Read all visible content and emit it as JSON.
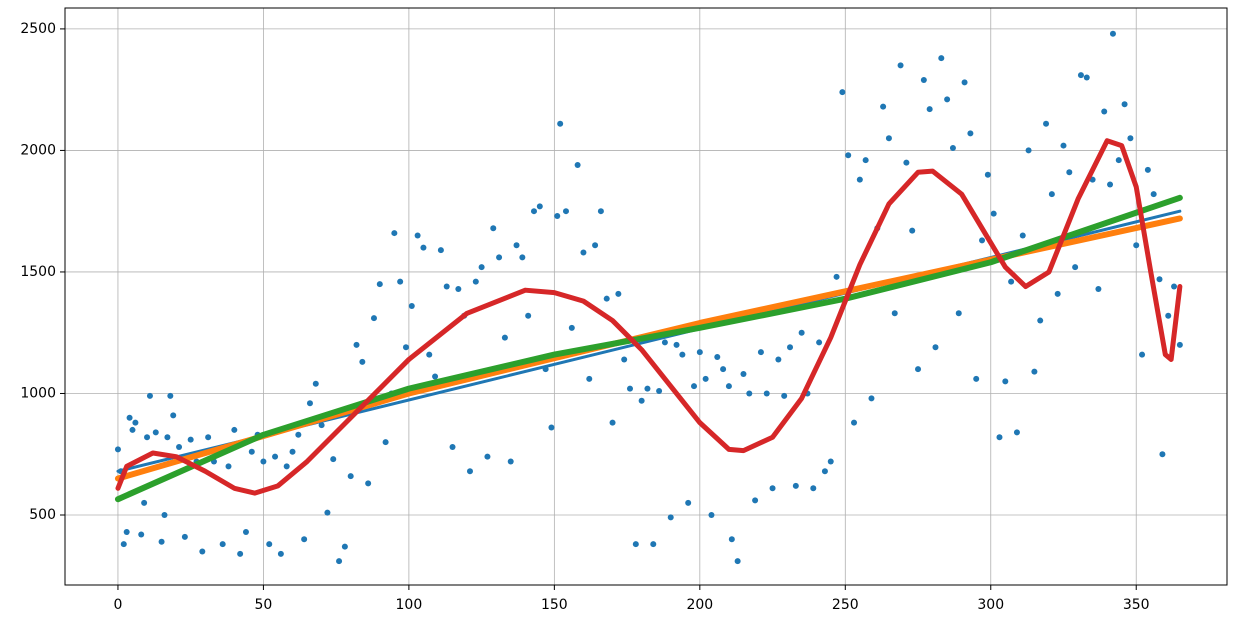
{
  "chart_data": {
    "type": "scatter",
    "color": "#1f77b4",
    "grid": true,
    "xlim": [
      -18.2,
      381.2
    ],
    "ylim": [
      212,
      2586
    ],
    "xticks": [
      0,
      50,
      100,
      150,
      200,
      250,
      300,
      350
    ],
    "yticks": [
      500,
      1000,
      1500,
      2000,
      2500
    ],
    "x": [
      0,
      1,
      2,
      3,
      4,
      5,
      6,
      8,
      9,
      10,
      11,
      13,
      15,
      16,
      17,
      18,
      19,
      21,
      23,
      25,
      27,
      29,
      31,
      33,
      36,
      38,
      40,
      42,
      44,
      46,
      48,
      50,
      52,
      54,
      56,
      58,
      60,
      62,
      64,
      66,
      68,
      70,
      72,
      74,
      76,
      78,
      80,
      82,
      84,
      86,
      88,
      90,
      92,
      94,
      95,
      97,
      99,
      101,
      103,
      105,
      107,
      109,
      111,
      113,
      115,
      117,
      119,
      121,
      123,
      125,
      127,
      129,
      131,
      133,
      135,
      137,
      139,
      141,
      143,
      145,
      147,
      149,
      151,
      152,
      154,
      156,
      158,
      160,
      162,
      164,
      166,
      168,
      170,
      172,
      174,
      176,
      178,
      180,
      182,
      184,
      186,
      188,
      190,
      192,
      194,
      196,
      198,
      200,
      202,
      204,
      206,
      208,
      210,
      211,
      213,
      215,
      217,
      219,
      221,
      223,
      225,
      227,
      229,
      231,
      233,
      235,
      237,
      239,
      241,
      243,
      245,
      247,
      249,
      251,
      253,
      255,
      257,
      259,
      261,
      263,
      265,
      267,
      269,
      271,
      273,
      275,
      277,
      279,
      281,
      283,
      285,
      287,
      289,
      291,
      293,
      295,
      297,
      299,
      301,
      303,
      305,
      307,
      309,
      311,
      313,
      315,
      317,
      319,
      321,
      323,
      325,
      327,
      329,
      331,
      333,
      335,
      337,
      339,
      341,
      342,
      344,
      346,
      348,
      350,
      352,
      354,
      356,
      358,
      359,
      361,
      363,
      365
    ],
    "values": [
      770,
      680,
      380,
      430,
      900,
      850,
      880,
      420,
      550,
      820,
      990,
      840,
      390,
      500,
      820,
      990,
      910,
      780,
      410,
      810,
      720,
      350,
      820,
      720,
      380,
      700,
      850,
      340,
      430,
      760,
      830,
      720,
      380,
      740,
      340,
      700,
      760,
      830,
      400,
      960,
      1040,
      870,
      510,
      730,
      310,
      370,
      660,
      1200,
      1130,
      630,
      1310,
      1450,
      800,
      1000,
      1660,
      1460,
      1190,
      1360,
      1650,
      1600,
      1160,
      1070,
      1590,
      1440,
      780,
      1430,
      1320,
      680,
      1460,
      1520,
      740,
      1680,
      1560,
      1230,
      720,
      1610,
      1560,
      1320,
      1750,
      1770,
      1100,
      860,
      1730,
      2110,
      1750,
      1270,
      1940,
      1580,
      1060,
      1610,
      1750,
      1390,
      880,
      1410,
      1140,
      1020,
      380,
      970,
      1020,
      380,
      1010,
      1210,
      490,
      1200,
      1160,
      550,
      1030,
      1170,
      1060,
      500,
      1150,
      1100,
      1030,
      400,
      310,
      1080,
      1000,
      560,
      1170,
      1000,
      610,
      1140,
      990,
      1190,
      620,
      1250,
      1000,
      610,
      1210,
      680,
      720,
      1480,
      2240,
      1980,
      880,
      1880,
      1960,
      980,
      1680,
      2180,
      2050,
      1330,
      2350,
      1950,
      1670,
      1100,
      2290,
      2170,
      1190,
      2380,
      2210,
      2010,
      1330,
      2280,
      2070,
      1060,
      1630,
      1900,
      1740,
      820,
      1050,
      1460,
      840,
      1650,
      2000,
      1090,
      1300,
      2110,
      1820,
      1410,
      2020,
      1910,
      1520,
      2310,
      2300,
      1880,
      1430,
      2160,
      1860,
      2480,
      1960,
      2190,
      2050,
      1610,
      1160,
      1920,
      1820,
      1470,
      750,
      1320,
      1440,
      1200
    ],
    "lines": [
      {
        "type": "line",
        "color": "#1f77b4",
        "x": [
          0,
          365
        ],
        "values": [
          680,
          1750
        ]
      },
      {
        "type": "line",
        "color": "#ff7f0e",
        "x": [
          0,
          100,
          200,
          365
        ],
        "values": [
          650,
          1000,
          1290,
          1720
        ]
      },
      {
        "type": "line",
        "color": "#2ca02c",
        "x": [
          0,
          50,
          100,
          150,
          200,
          250,
          300,
          365
        ],
        "values": [
          565,
          830,
          1020,
          1160,
          1270,
          1390,
          1540,
          1805
        ]
      },
      {
        "type": "line",
        "color": "#d62728",
        "x": [
          0,
          3,
          12,
          20,
          30,
          40,
          47,
          55,
          65,
          80,
          100,
          120,
          140,
          150,
          160,
          170,
          180,
          190,
          200,
          210,
          215,
          225,
          235,
          245,
          255,
          265,
          275,
          280,
          290,
          300,
          305,
          312,
          320,
          330,
          340,
          345,
          350,
          355,
          360,
          362,
          365
        ],
        "values": [
          610,
          700,
          755,
          740,
          680,
          610,
          590,
          620,
          720,
          900,
          1140,
          1330,
          1425,
          1415,
          1380,
          1300,
          1180,
          1030,
          880,
          770,
          765,
          820,
          980,
          1230,
          1530,
          1780,
          1910,
          1915,
          1820,
          1620,
          1520,
          1440,
          1500,
          1800,
          2040,
          2020,
          1850,
          1500,
          1160,
          1140,
          1440
        ]
      }
    ]
  }
}
